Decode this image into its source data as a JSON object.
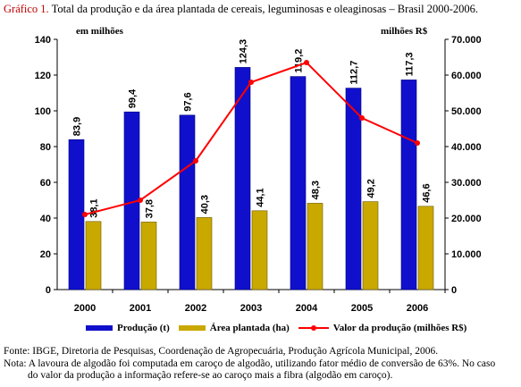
{
  "title": {
    "prefix": "Gráfico 1.",
    "text": " Total da produção e da área plantada de cereais, leguminosas e oleaginosas – Brasil 2000-2006."
  },
  "units": {
    "left": "em milhões",
    "right": "milhões R$"
  },
  "legend": {
    "producao": "Produção (t)",
    "area": "Área plantada (ha)",
    "valor": "Valor da produção (milhões R$)"
  },
  "notes": {
    "fonte": "Fonte: IBGE, Diretoria de Pesquisas, Coordenação de Agropecuária, Produção Agrícola Municipal, 2006.",
    "nota_1": "Nota: A lavoura de algodão foi computada em caroço de algodão, utilizando fator médio de conversão de 63%. No caso",
    "nota_2": "do valor da produção a informação refere-se ao caroço mais a fibra (algodão em caroço)."
  },
  "colors": {
    "producao": "#1010cc",
    "area": "#c9a800",
    "valor": "#ff0000"
  },
  "chart_data": {
    "type": "bar",
    "categories": [
      "2000",
      "2001",
      "2002",
      "2003",
      "2004",
      "2005",
      "2006"
    ],
    "series": [
      {
        "name": "Produção (t)",
        "axis": "left",
        "values": [
          83.9,
          99.4,
          97.6,
          124.3,
          119.2,
          112.7,
          117.3
        ],
        "labels": [
          "83,9",
          "99,4",
          "97,6",
          "124,3",
          "119,2",
          "112,7",
          "117,3"
        ]
      },
      {
        "name": "Área plantada (ha)",
        "axis": "left",
        "values": [
          38.1,
          37.8,
          40.3,
          44.1,
          48.3,
          49.2,
          46.6
        ],
        "labels": [
          "38,1",
          "37,8",
          "40,3",
          "44,1",
          "48,3",
          "49,2",
          "46,6"
        ]
      },
      {
        "name": "Valor da produção (milhões R$)",
        "axis": "right",
        "type": "line",
        "values": [
          21000,
          25000,
          36000,
          58000,
          63500,
          48000,
          41000
        ]
      }
    ],
    "y_left": {
      "ylim": [
        0,
        140
      ],
      "ticks": [
        "0",
        "20",
        "40",
        "60",
        "80",
        "100",
        "120",
        "140"
      ]
    },
    "y_right": {
      "ylim": [
        0,
        70000
      ],
      "ticks": [
        "0",
        "10.000",
        "20.000",
        "30.000",
        "40.000",
        "50.000",
        "60.000",
        "70.000"
      ]
    },
    "grid": false,
    "legend_position": "bottom"
  }
}
